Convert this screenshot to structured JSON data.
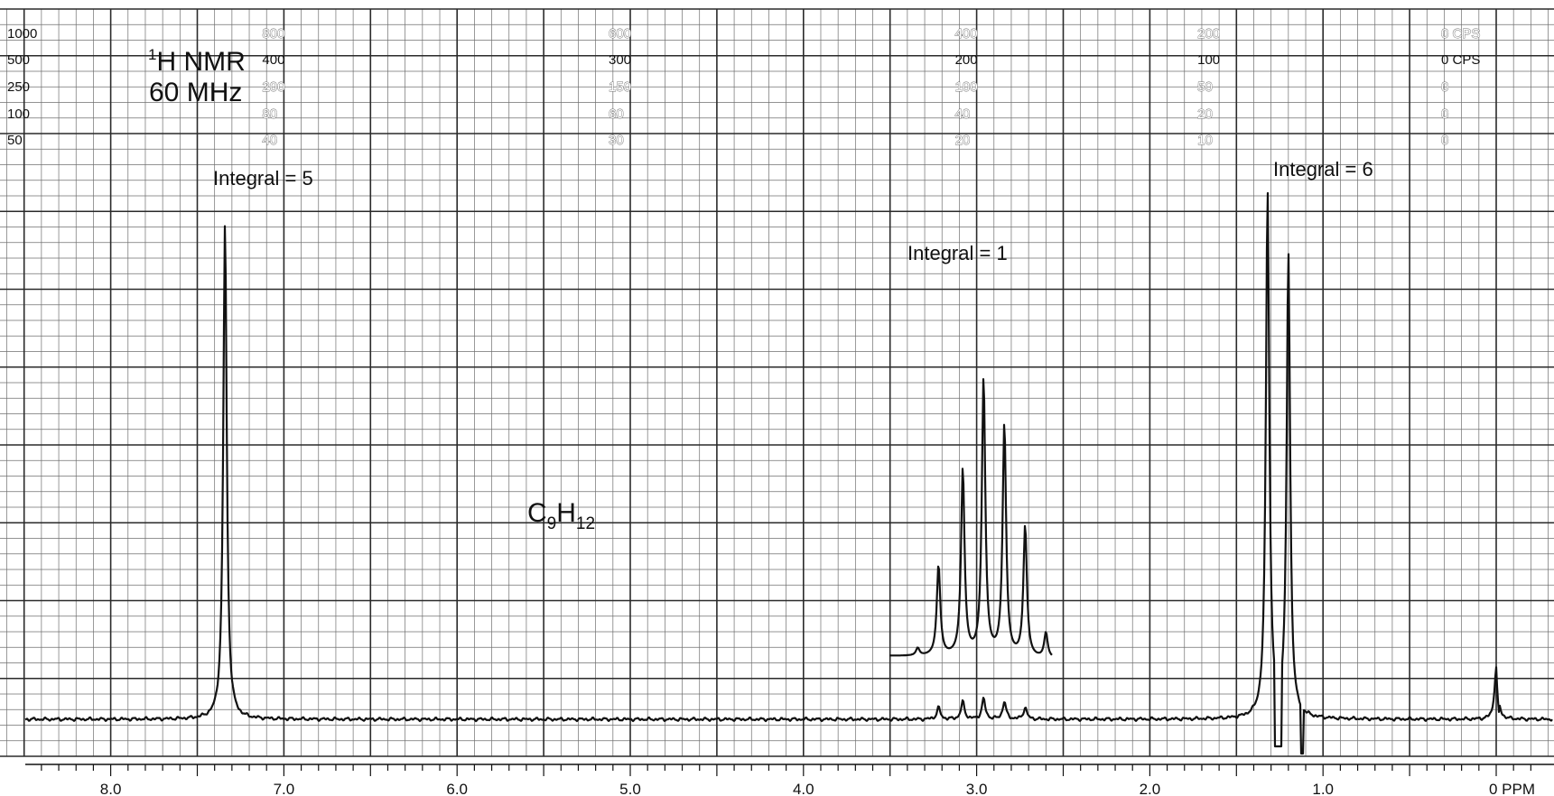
{
  "chart_data": {
    "type": "line",
    "title_line1": "H NMR",
    "title_sup": "1",
    "title_line2": "60 MHz",
    "formula": {
      "C": "C",
      "c_sub": "9",
      "H": "H",
      "h_sub": "12"
    },
    "xlabel": "PPM",
    "x_axis_reversed": true,
    "xlim": [
      8.5,
      -0.2
    ],
    "x_ticks": [
      "8.0",
      "7.0",
      "6.0",
      "5.0",
      "4.0",
      "3.0",
      "2.0",
      "1.0",
      "0 PPM"
    ],
    "x_tick_values": [
      8.0,
      7.0,
      6.0,
      5.0,
      4.0,
      3.0,
      2.0,
      1.0,
      0.0
    ],
    "grid": true,
    "left_scale": [
      "1000",
      "500",
      "250",
      "100",
      "50"
    ],
    "cps_scales": [
      {
        "ppm": 7.0,
        "labels": [
          "800",
          "400",
          "200",
          "80",
          "40"
        ]
      },
      {
        "ppm": 5.0,
        "labels": [
          "600",
          "300",
          "150",
          "60",
          "30"
        ]
      },
      {
        "ppm": 3.0,
        "labels": [
          "400",
          "200",
          "100",
          "40",
          "20"
        ]
      },
      {
        "ppm": 1.6,
        "labels": [
          "200",
          "100",
          "50",
          "20",
          "10"
        ]
      },
      {
        "ppm": -0.3,
        "labels": [
          "0 CPS",
          "0 CPS",
          "0",
          "0",
          "0"
        ]
      }
    ],
    "annotations": [
      {
        "text": "Integral = 5",
        "ppm": 7.35
      },
      {
        "text": "Integral = 1",
        "ppm": 2.95
      },
      {
        "text": "Integral = 6",
        "ppm": 1.25
      }
    ],
    "peaks": [
      {
        "ppm": 7.34,
        "height": 0.86
      },
      {
        "ppm": 3.22,
        "height": 0.02
      },
      {
        "ppm": 3.08,
        "height": 0.03
      },
      {
        "ppm": 2.96,
        "height": 0.035
      },
      {
        "ppm": 2.84,
        "height": 0.03
      },
      {
        "ppm": 2.72,
        "height": 0.02
      },
      {
        "ppm": 1.32,
        "height": 0.91
      },
      {
        "ppm": 1.2,
        "height": 0.8
      },
      {
        "ppm": 0.0,
        "height": 0.09
      }
    ],
    "expansion_peaks": [
      {
        "ppm": 3.34,
        "height": 0.015
      },
      {
        "ppm": 3.22,
        "height": 0.18
      },
      {
        "ppm": 3.08,
        "height": 0.37
      },
      {
        "ppm": 2.96,
        "height": 0.55
      },
      {
        "ppm": 2.84,
        "height": 0.46
      },
      {
        "ppm": 2.72,
        "height": 0.26
      },
      {
        "ppm": 2.6,
        "height": 0.05
      }
    ]
  }
}
